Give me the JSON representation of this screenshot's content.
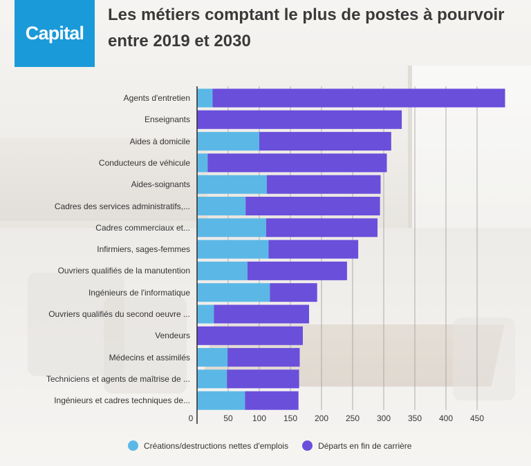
{
  "brand": {
    "name": "Capital",
    "color": "#1a9ad9"
  },
  "title_line1": "Les métiers comptant le plus de postes à pourvoir",
  "title_line2": "entre 2019 et 2030",
  "chart_data": {
    "type": "bar",
    "orientation": "horizontal",
    "stacked": true,
    "categories": [
      "Agents d'entretien",
      "Enseignants",
      "Aides à domicile",
      "Conducteurs de véhicule",
      "Aides-soignants",
      "Cadres des services administratifs,...",
      "Cadres commerciaux et...",
      "Infirmiers, sages-femmes",
      "Ouvriers qualifiés de la manutention",
      "Ingénieurs de l'informatique",
      "Ouvriers qualifiés du second oeuvre ...",
      "Vendeurs",
      "Médecins et assimilés",
      "Techniciens et agents de maîtrise de ...",
      "Ingénieurs et cadres techniques de..."
    ],
    "series": [
      {
        "name": "Créations/destructions nettes d'emplois",
        "color": "#5bb8e6",
        "values": [
          25,
          0,
          100,
          17,
          112,
          78,
          111,
          115,
          81,
          117,
          27,
          0,
          49,
          48,
          77
        ]
      },
      {
        "name": "Départs en fin de carrière",
        "color": "#6a4fdb",
        "values": [
          470,
          329,
          212,
          288,
          183,
          216,
          179,
          144,
          160,
          76,
          153,
          170,
          116,
          116,
          86
        ]
      }
    ],
    "xticks": [
      0,
      50,
      100,
      150,
      200,
      250,
      300,
      350,
      400,
      450
    ],
    "xlim": [
      0,
      490
    ],
    "grid": true,
    "legend_position": "bottom"
  }
}
